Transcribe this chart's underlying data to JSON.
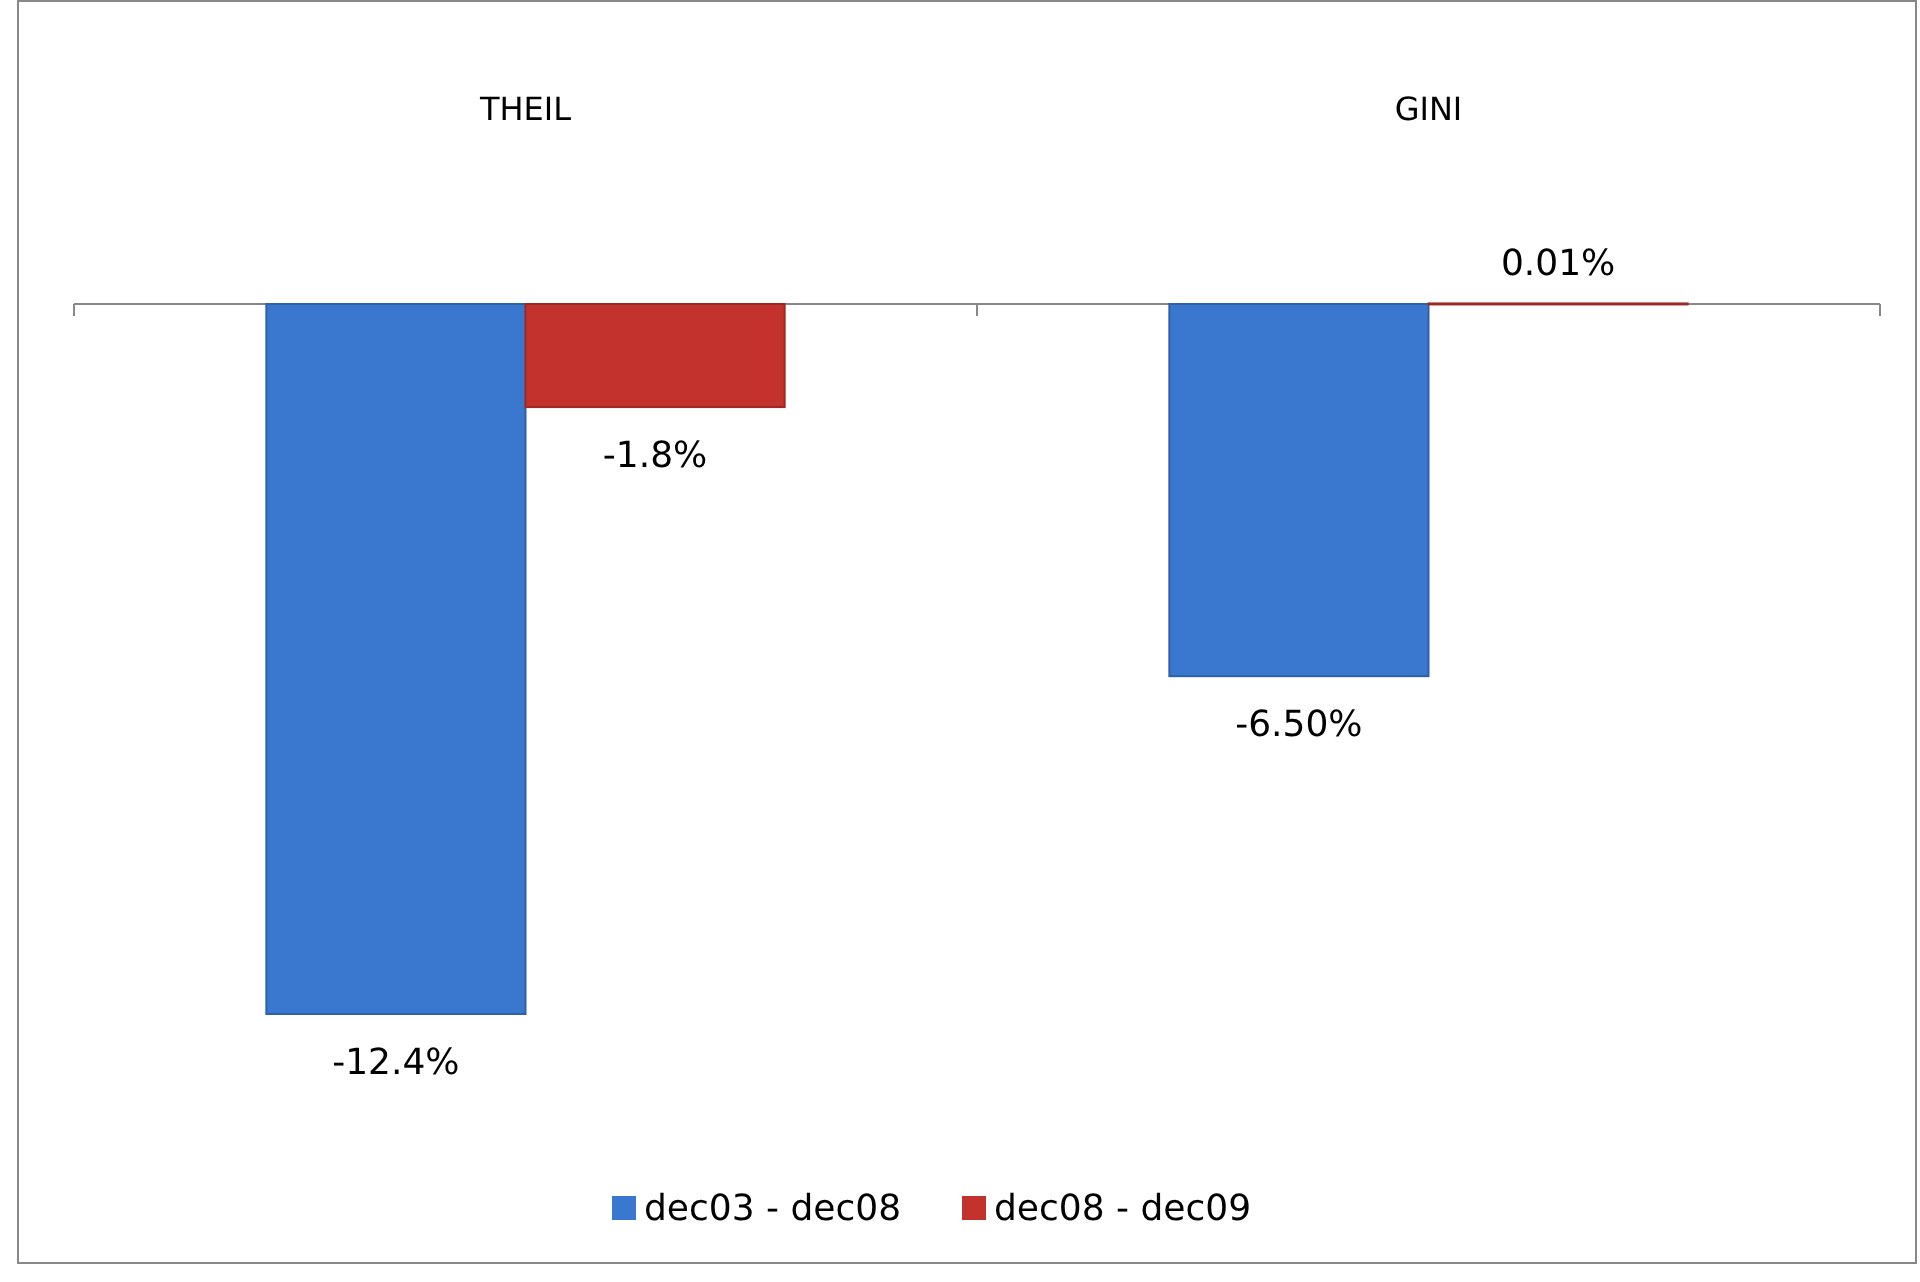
{
  "chart_data": {
    "type": "bar",
    "categories": [
      "THEIL",
      "GINI"
    ],
    "series": [
      {
        "name": "dec03 - dec08",
        "color": "#3a78d0",
        "values": [
          -12.4,
          -6.5
        ],
        "value_labels": [
          "-12.4%",
          "-6.50%"
        ]
      },
      {
        "name": "dec08 - dec09",
        "color": "#c3322c",
        "values": [
          -1.8,
          0.01
        ],
        "value_labels": [
          "-1.8%",
          "0.01%"
        ]
      }
    ],
    "tick_labels": "x",
    "legend": "bottom"
  }
}
